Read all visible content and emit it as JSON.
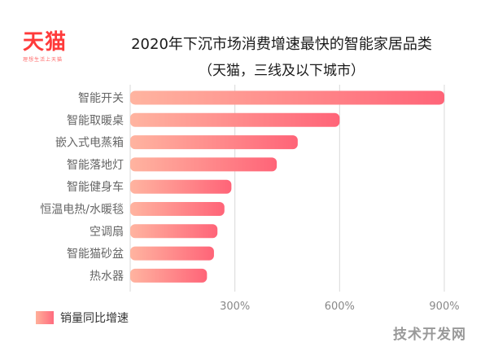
{
  "logo": {
    "name": "天猫",
    "tagline": "理想生活上天猫"
  },
  "colors": {
    "bar_start": "#ffb4a0",
    "bar_end": "#ff6478",
    "grid": "#d9d9d9",
    "label": "#666666"
  },
  "chart_data": {
    "type": "bar",
    "orientation": "horizontal",
    "title": "2020年下沉市场消费增速最快的智能家居品类",
    "subtitle": "（天猫，三线及以下城市）",
    "categories": [
      "智能开关",
      "智能取暖桌",
      "嵌入式电蒸箱",
      "智能落地灯",
      "智能健身车",
      "恒温电热/水暖毯",
      "空调扇",
      "智能猫砂盆",
      "热水器"
    ],
    "series": [
      {
        "name": "销量同比增速",
        "values": [
          900,
          600,
          480,
          420,
          290,
          270,
          250,
          240,
          220
        ]
      }
    ],
    "x_ticks": [
      300,
      600,
      900
    ],
    "x_tick_labels": [
      "300%",
      "600%",
      "900%"
    ],
    "xlim": [
      0,
      900
    ],
    "grid": true,
    "legend": "bottom-left"
  },
  "watermark": "技术开发网"
}
